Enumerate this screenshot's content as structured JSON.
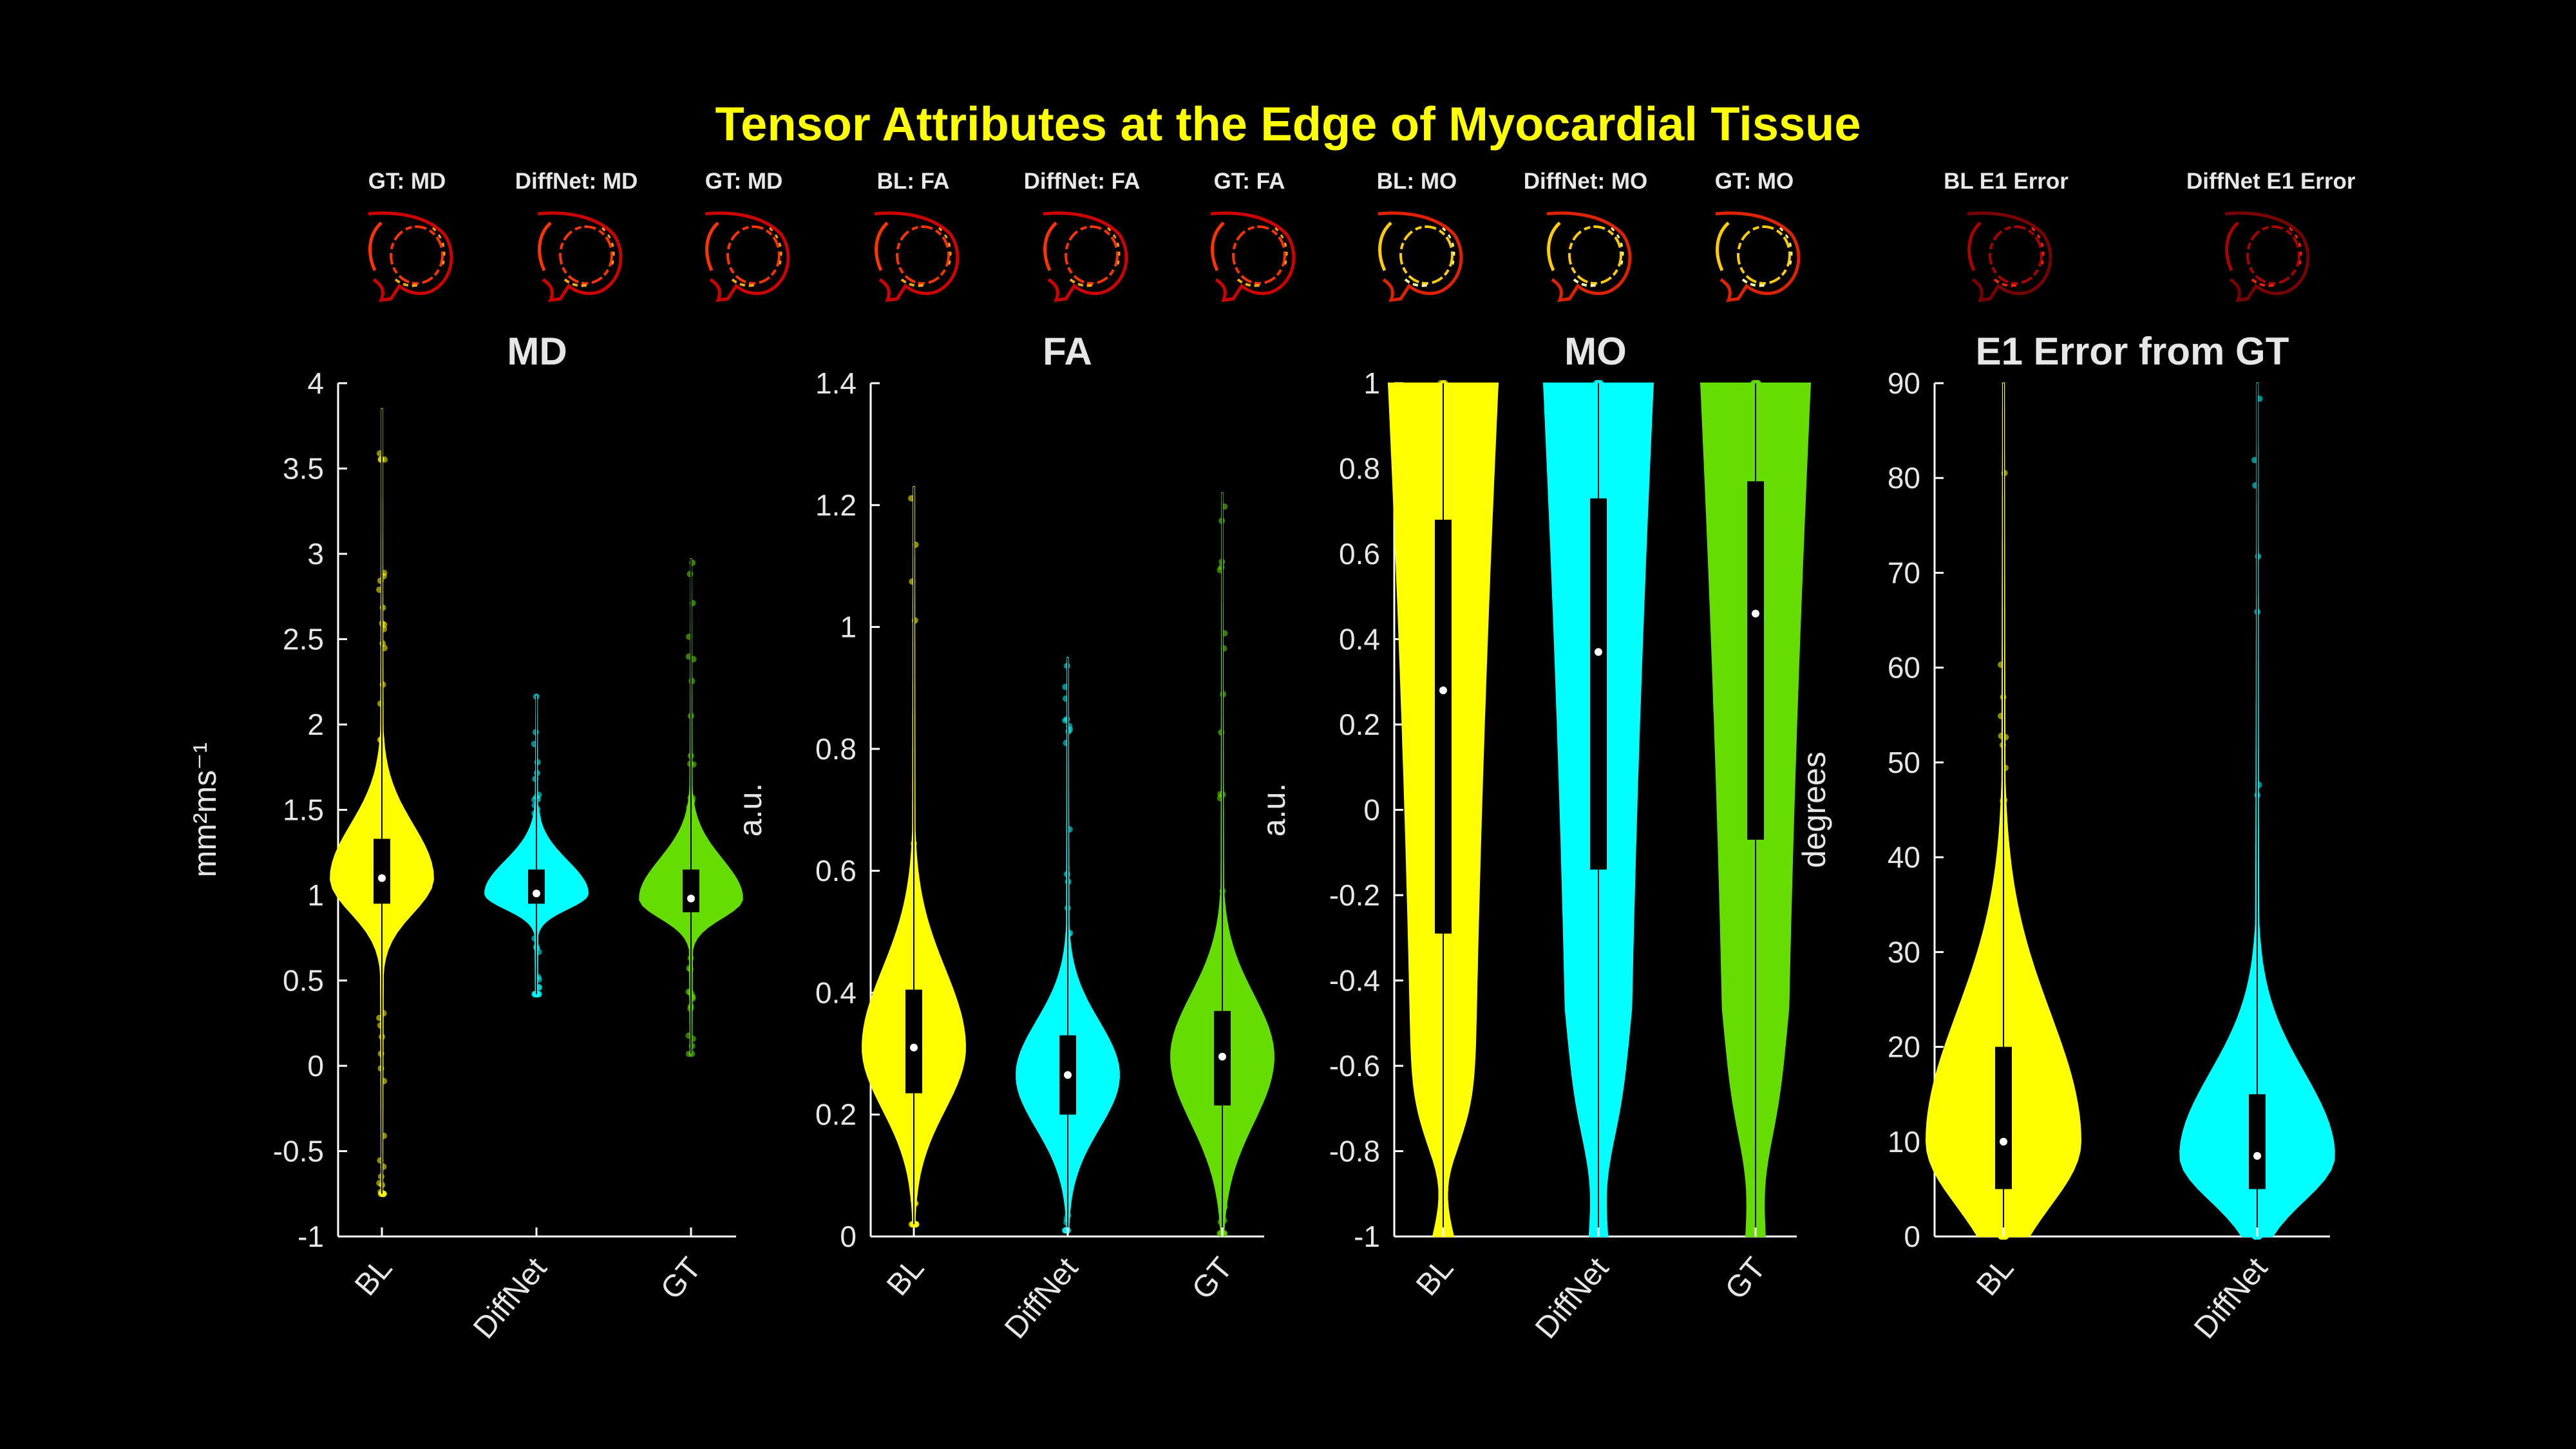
{
  "title": "Tensor Attributes at the Edge of Myocardial Tissue",
  "thumbnails": [
    {
      "label": "GT: MD",
      "palette": "red"
    },
    {
      "label": "DiffNet: MD",
      "palette": "red"
    },
    {
      "label": "GT: MD",
      "palette": "red"
    },
    {
      "label": "BL: FA",
      "palette": "red"
    },
    {
      "label": "DiffNet: FA",
      "palette": "red"
    },
    {
      "label": "GT: FA",
      "palette": "red"
    },
    {
      "label": "BL: MO",
      "palette": "hot"
    },
    {
      "label": "DiffNet: MO",
      "palette": "hot"
    },
    {
      "label": "GT: MO",
      "palette": "hot"
    },
    {
      "label": "BL E1 Error",
      "palette": "dark"
    },
    {
      "label": "DiffNet E1 Error",
      "palette": "dark"
    }
  ],
  "colors": {
    "BL": "#ffff00",
    "DiffNet": "#00ffff",
    "GT": "#66dd00",
    "title": "#ffff00",
    "axis": "#ffffff"
  },
  "chart_data": [
    {
      "type": "violin",
      "title": "MD",
      "ylabel": "mm²ms⁻¹",
      "ylim": [
        -1,
        4
      ],
      "yticks": [
        -1,
        -0.5,
        0,
        0.5,
        1,
        1.5,
        2,
        2.5,
        3,
        3.5,
        4
      ],
      "categories": [
        "BL",
        "DiffNet",
        "GT"
      ],
      "series": [
        {
          "name": "BL",
          "median": 1.1,
          "q1": 0.95,
          "q3": 1.33,
          "min": -0.75,
          "max": 3.85
        },
        {
          "name": "DiffNet",
          "median": 1.01,
          "q1": 0.95,
          "q3": 1.15,
          "min": 0.42,
          "max": 2.17
        },
        {
          "name": "GT",
          "median": 0.98,
          "q1": 0.9,
          "q3": 1.15,
          "min": 0.07,
          "max": 2.97
        }
      ]
    },
    {
      "type": "violin",
      "title": "FA",
      "ylabel": "a.u.",
      "ylim": [
        0,
        1.4
      ],
      "yticks": [
        0,
        0.2,
        0.4,
        0.6,
        0.8,
        1,
        1.2,
        1.4
      ],
      "categories": [
        "BL",
        "DiffNet",
        "GT"
      ],
      "series": [
        {
          "name": "BL",
          "median": 0.31,
          "q1": 0.235,
          "q3": 0.405,
          "min": 0.02,
          "max": 1.23
        },
        {
          "name": "DiffNet",
          "median": 0.265,
          "q1": 0.2,
          "q3": 0.33,
          "min": 0.01,
          "max": 0.95
        },
        {
          "name": "GT",
          "median": 0.295,
          "q1": 0.215,
          "q3": 0.37,
          "min": 0.005,
          "max": 1.22
        }
      ]
    },
    {
      "type": "violin",
      "title": "MO",
      "ylabel": "a.u.",
      "ylim": [
        -1,
        1
      ],
      "yticks": [
        -1,
        -0.8,
        -0.6,
        -0.4,
        -0.2,
        0,
        0.2,
        0.4,
        0.6,
        0.8,
        1
      ],
      "categories": [
        "BL",
        "DiffNet",
        "GT"
      ],
      "series": [
        {
          "name": "BL",
          "median": 0.28,
          "q1": -0.29,
          "q3": 0.68,
          "min": -1,
          "max": 1
        },
        {
          "name": "DiffNet",
          "median": 0.37,
          "q1": -0.14,
          "q3": 0.73,
          "min": -1,
          "max": 1
        },
        {
          "name": "GT",
          "median": 0.46,
          "q1": -0.07,
          "q3": 0.77,
          "min": -1,
          "max": 1
        }
      ]
    },
    {
      "type": "violin",
      "title": "E1 Error from GT",
      "ylabel": "degrees",
      "ylim": [
        0,
        90
      ],
      "yticks": [
        0,
        10,
        20,
        30,
        40,
        50,
        60,
        70,
        80,
        90
      ],
      "categories": [
        "BL",
        "DiffNet"
      ],
      "series": [
        {
          "name": "BL",
          "median": 10,
          "q1": 5,
          "q3": 20,
          "min": 0,
          "max": 90
        },
        {
          "name": "DiffNet",
          "median": 8.5,
          "q1": 5,
          "q3": 15,
          "min": 0,
          "max": 90
        }
      ]
    }
  ]
}
